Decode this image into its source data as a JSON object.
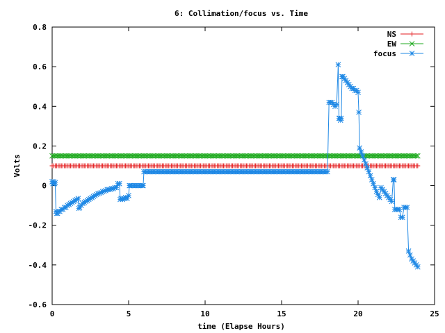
{
  "chart_data": {
    "type": "line",
    "title": "6: Collimation/focus vs. Time",
    "xlabel": "time (Elapse Hours)",
    "ylabel": "Volts",
    "xlim": [
      0,
      25
    ],
    "ylim": [
      -0.6,
      0.8
    ],
    "xticks": [
      0,
      5,
      10,
      15,
      20,
      25
    ],
    "yticks": [
      -0.6,
      -0.4,
      -0.2,
      0,
      0.2,
      0.4,
      0.6,
      0.8
    ],
    "grid": false,
    "legend_position": "top-right",
    "series": [
      {
        "name": "NS",
        "color": "#e31a1c",
        "marker": "plus",
        "constant": 0.1,
        "x_range": [
          0,
          23.9
        ],
        "step": 0.1
      },
      {
        "name": "EW",
        "color": "#1faa1f",
        "marker": "cross",
        "constant": 0.15,
        "x_range": [
          0,
          23.9
        ],
        "step": 0.1
      },
      {
        "name": "focus",
        "color": "#1e88e5",
        "marker": "star",
        "points": [
          [
            0.0,
            0.02
          ],
          [
            0.05,
            0.01
          ],
          [
            0.1,
            0.02
          ],
          [
            0.15,
            0.01
          ],
          [
            0.2,
            0.015
          ],
          [
            0.25,
            -0.13
          ],
          [
            0.3,
            -0.14
          ],
          [
            0.35,
            -0.14
          ],
          [
            0.4,
            -0.13
          ],
          [
            0.5,
            -0.13
          ],
          [
            0.6,
            -0.12
          ],
          [
            0.7,
            -0.12
          ],
          [
            0.8,
            -0.11
          ],
          [
            0.9,
            -0.11
          ],
          [
            1.0,
            -0.1
          ],
          [
            1.1,
            -0.095
          ],
          [
            1.2,
            -0.09
          ],
          [
            1.3,
            -0.085
          ],
          [
            1.4,
            -0.08
          ],
          [
            1.5,
            -0.075
          ],
          [
            1.6,
            -0.07
          ],
          [
            1.7,
            -0.065
          ],
          [
            1.75,
            -0.115
          ],
          [
            1.8,
            -0.11
          ],
          [
            1.9,
            -0.1
          ],
          [
            2.0,
            -0.09
          ],
          [
            2.1,
            -0.085
          ],
          [
            2.2,
            -0.08
          ],
          [
            2.3,
            -0.075
          ],
          [
            2.4,
            -0.07
          ],
          [
            2.5,
            -0.065
          ],
          [
            2.6,
            -0.06
          ],
          [
            2.7,
            -0.055
          ],
          [
            2.8,
            -0.05
          ],
          [
            2.9,
            -0.045
          ],
          [
            3.0,
            -0.04
          ],
          [
            3.1,
            -0.038
          ],
          [
            3.2,
            -0.035
          ],
          [
            3.3,
            -0.03
          ],
          [
            3.4,
            -0.028
          ],
          [
            3.5,
            -0.025
          ],
          [
            3.6,
            -0.02
          ],
          [
            3.7,
            -0.02
          ],
          [
            3.8,
            -0.018
          ],
          [
            3.9,
            -0.015
          ],
          [
            4.0,
            -0.015
          ],
          [
            4.1,
            -0.01
          ],
          [
            4.2,
            -0.01
          ],
          [
            4.3,
            0.01
          ],
          [
            4.4,
            0.01
          ],
          [
            4.45,
            -0.07
          ],
          [
            4.5,
            -0.065
          ],
          [
            4.6,
            -0.07
          ],
          [
            4.7,
            -0.065
          ],
          [
            4.8,
            -0.06
          ],
          [
            4.9,
            -0.065
          ],
          [
            5.0,
            -0.05
          ],
          [
            5.05,
            0.0
          ],
          [
            5.1,
            0.0
          ],
          [
            5.2,
            0.0
          ],
          [
            5.3,
            0.0
          ],
          [
            5.4,
            0.0
          ],
          [
            5.5,
            0.0
          ],
          [
            5.6,
            0.0
          ],
          [
            5.7,
            0.0
          ],
          [
            5.8,
            0.0
          ],
          [
            5.9,
            0.0
          ],
          [
            5.95,
            0.0
          ],
          [
            6.0,
            0.07
          ],
          [
            18.0,
            0.07
          ],
          [
            18.1,
            0.42
          ],
          [
            18.2,
            0.42
          ],
          [
            18.3,
            0.42
          ],
          [
            18.4,
            0.41
          ],
          [
            18.5,
            0.4
          ],
          [
            18.6,
            0.41
          ],
          [
            18.7,
            0.61
          ],
          [
            18.75,
            0.34
          ],
          [
            18.8,
            0.34
          ],
          [
            18.85,
            0.33
          ],
          [
            18.9,
            0.34
          ],
          [
            18.95,
            0.55
          ],
          [
            19.0,
            0.55
          ],
          [
            19.1,
            0.54
          ],
          [
            19.2,
            0.53
          ],
          [
            19.3,
            0.52
          ],
          [
            19.4,
            0.51
          ],
          [
            19.5,
            0.5
          ],
          [
            19.6,
            0.49
          ],
          [
            19.7,
            0.49
          ],
          [
            19.8,
            0.48
          ],
          [
            19.9,
            0.48
          ],
          [
            20.0,
            0.47
          ],
          [
            20.05,
            0.37
          ],
          [
            20.1,
            0.19
          ],
          [
            20.2,
            0.17
          ],
          [
            20.3,
            0.15
          ],
          [
            20.4,
            0.13
          ],
          [
            20.5,
            0.11
          ],
          [
            20.6,
            0.09
          ],
          [
            20.7,
            0.07
          ],
          [
            20.8,
            0.05
          ],
          [
            20.9,
            0.03
          ],
          [
            21.0,
            0.01
          ],
          [
            21.1,
            -0.01
          ],
          [
            21.2,
            -0.03
          ],
          [
            21.3,
            -0.045
          ],
          [
            21.4,
            -0.06
          ],
          [
            21.5,
            -0.01
          ],
          [
            21.6,
            -0.02
          ],
          [
            21.7,
            -0.03
          ],
          [
            21.8,
            -0.04
          ],
          [
            21.9,
            -0.05
          ],
          [
            22.0,
            -0.06
          ],
          [
            22.1,
            -0.07
          ],
          [
            22.2,
            -0.08
          ],
          [
            22.3,
            0.03
          ],
          [
            22.35,
            0.03
          ],
          [
            22.4,
            -0.12
          ],
          [
            22.5,
            -0.12
          ],
          [
            22.6,
            -0.12
          ],
          [
            22.7,
            -0.12
          ],
          [
            22.8,
            -0.16
          ],
          [
            22.9,
            -0.16
          ],
          [
            23.0,
            -0.11
          ],
          [
            23.1,
            -0.11
          ],
          [
            23.2,
            -0.11
          ],
          [
            23.3,
            -0.33
          ],
          [
            23.4,
            -0.35
          ],
          [
            23.5,
            -0.37
          ],
          [
            23.6,
            -0.38
          ],
          [
            23.7,
            -0.39
          ],
          [
            23.8,
            -0.4
          ],
          [
            23.9,
            -0.41
          ]
        ],
        "marker_every_on_flat": 0.1
      }
    ]
  }
}
